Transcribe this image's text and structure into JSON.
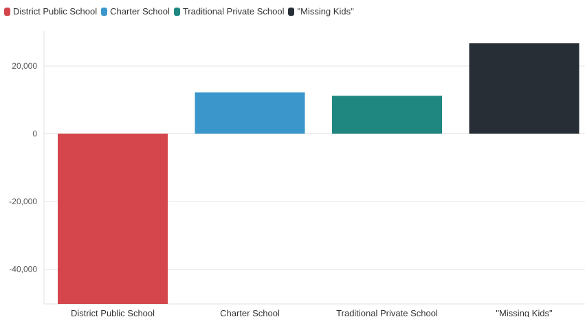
{
  "chart_data": {
    "type": "bar",
    "categories": [
      "District Public School",
      "Charter School",
      "Traditional Private School",
      "\"Missing Kids\""
    ],
    "values": [
      -51000,
      12200,
      11200,
      26700
    ],
    "colors": [
      "#d4464c",
      "#3b97cb",
      "#1f877f",
      "#272e36"
    ],
    "legend": {
      "placement": "top-left",
      "entries": [
        "District Public School",
        "Charter School",
        "Traditional Private School",
        "\"Missing Kids\""
      ],
      "colors": [
        "#d4464c",
        "#3b97cb",
        "#1f877f",
        "#272e36"
      ]
    },
    "yticks": [
      20000,
      0,
      -20000,
      -40000
    ],
    "ytick_labels": [
      "20,000",
      "0",
      "-20,000",
      "-40,000"
    ],
    "ylim": [
      -50500,
      30000
    ],
    "grid": true
  }
}
